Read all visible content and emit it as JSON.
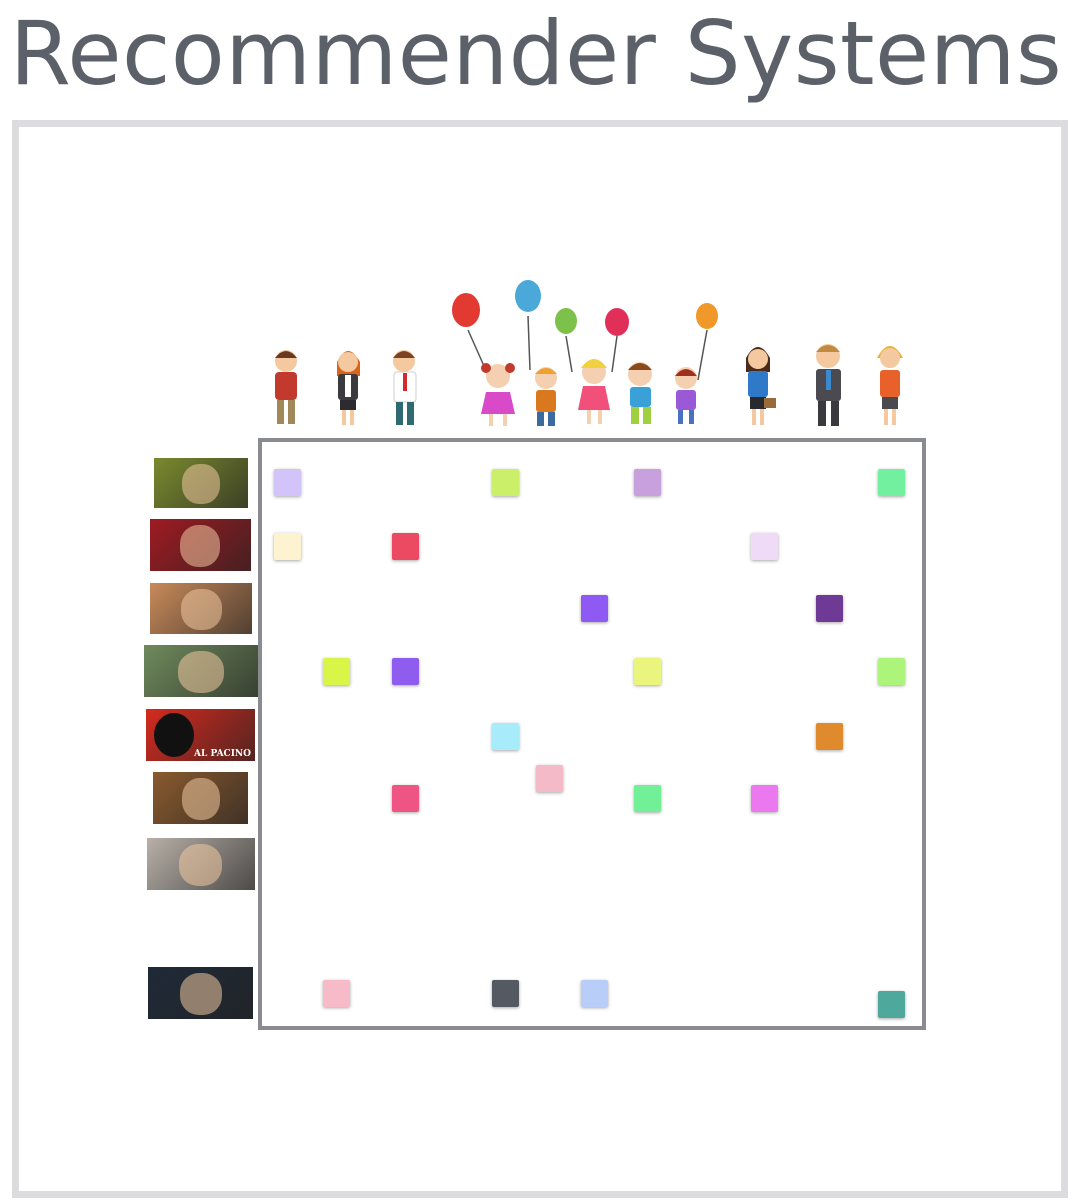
{
  "title": "Recommender Systems",
  "people": [
    {
      "name": "boy-icon"
    },
    {
      "name": "woman-icon"
    },
    {
      "name": "man-icon"
    },
    {
      "name": "child-balloon-icon"
    },
    {
      "name": "child-balloon-icon"
    },
    {
      "name": "child-balloon-icon"
    },
    {
      "name": "child-balloon-icon"
    },
    {
      "name": "child-balloon-icon"
    },
    {
      "name": "woman-briefcase-icon"
    },
    {
      "name": "businessman-icon"
    },
    {
      "name": "woman-headset-icon"
    }
  ],
  "movies": [
    {
      "name": "shrek-poster",
      "color": "#7a8a2e",
      "text": ""
    },
    {
      "name": "deadpool-poster",
      "color": "#9e1b22",
      "text": ""
    },
    {
      "name": "mean-girls-poster",
      "color": "#c88a5a",
      "text": ""
    },
    {
      "name": "forrest-gump-poster",
      "color": "#6f8a5c",
      "text": ""
    },
    {
      "name": "scarface-poster",
      "color": "#d42a1e",
      "text": "AL PACINO"
    },
    {
      "name": "beauty-and-the-beast-poster",
      "color": "#8a5a2e",
      "text": ""
    },
    {
      "name": "the-shining-poster",
      "color": "#b8b0a8",
      "text": ""
    },
    {
      "name": "batman-v-superman-poster",
      "color": "#1f2a38",
      "text": ""
    }
  ],
  "ratings": [
    {
      "row": 0,
      "col": 0,
      "color": "#d2c4f8"
    },
    {
      "row": 0,
      "col": 4,
      "color": "#ccef6a"
    },
    {
      "row": 0,
      "col": 7,
      "color": "#c9a0de"
    },
    {
      "row": 0,
      "col": 11,
      "color": "#72f0a0"
    },
    {
      "row": 1,
      "col": 0,
      "color": "#fdf3d0"
    },
    {
      "row": 1,
      "col": 2,
      "color": "#ec4a63"
    },
    {
      "row": 1,
      "col": 9,
      "color": "#efdaf8"
    },
    {
      "row": 2,
      "col": 6,
      "color": "#8f5af4"
    },
    {
      "row": 2,
      "col": 10,
      "color": "#6e3a96"
    },
    {
      "row": 3,
      "col": 1,
      "color": "#d9f548"
    },
    {
      "row": 3,
      "col": 2,
      "color": "#8f5cf0"
    },
    {
      "row": 3,
      "col": 7,
      "color": "#eaf57e"
    },
    {
      "row": 3,
      "col": 11,
      "color": "#acf57a"
    },
    {
      "row": 4,
      "col": 4,
      "color": "#a7ecfb"
    },
    {
      "row": 4,
      "col": 10,
      "color": "#df8a2c"
    },
    {
      "row": 5,
      "col": 5,
      "color": "#f5bac8"
    },
    {
      "row": 5,
      "col": 7,
      "color": "#72f098"
    },
    {
      "row": 6,
      "col": 2,
      "color": "#ee5584"
    },
    {
      "row": 6,
      "col": 9,
      "color": "#ec78f0"
    },
    {
      "row": 8,
      "col": 1,
      "color": "#f6bac8"
    },
    {
      "row": 8,
      "col": 4,
      "color": "#555961"
    },
    {
      "row": 8,
      "col": 6,
      "color": "#b8cef8"
    },
    {
      "row": 8,
      "col": 11,
      "color": "#4fa89c"
    }
  ]
}
